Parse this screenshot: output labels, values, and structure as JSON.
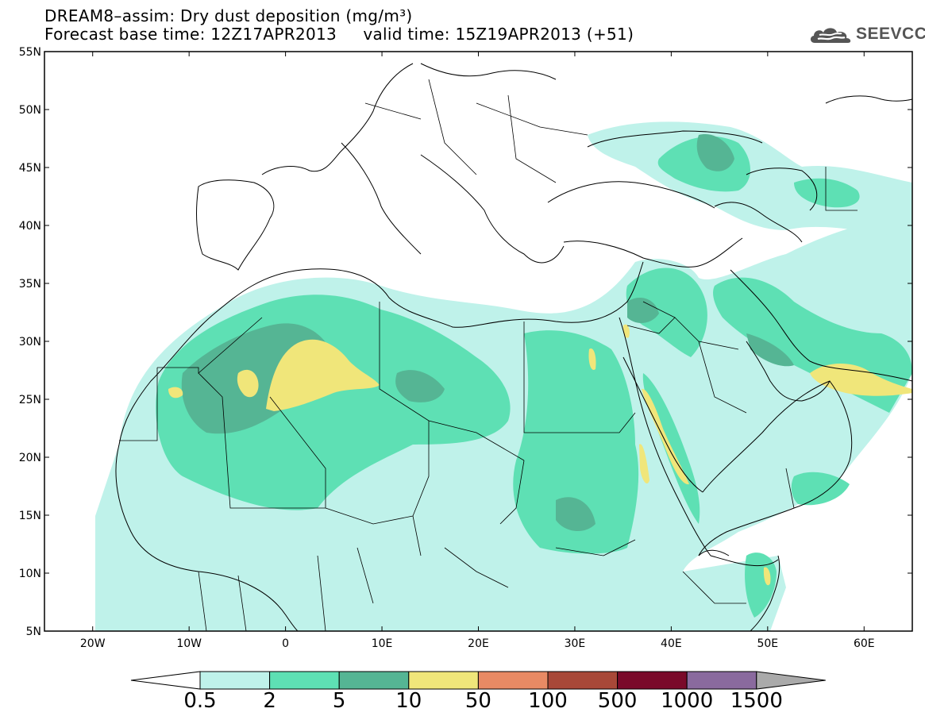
{
  "title": {
    "line1": "DREAM8–assim: Dry dust deposition (mg/m³)",
    "line2": "Forecast base time: 12Z17APR2013     valid time: 15Z19APR2013 (+51)"
  },
  "logo": {
    "text": "SEEVCCC",
    "icon": "cloud-icon"
  },
  "map": {
    "lon_range": [
      -25,
      65
    ],
    "lat_range": [
      5,
      55
    ],
    "lat_ticks": [
      {
        "value": 55,
        "label": "55N"
      },
      {
        "value": 50,
        "label": "50N"
      },
      {
        "value": 45,
        "label": "45N"
      },
      {
        "value": 40,
        "label": "40N"
      },
      {
        "value": 35,
        "label": "35N"
      },
      {
        "value": 30,
        "label": "30N"
      },
      {
        "value": 25,
        "label": "25N"
      },
      {
        "value": 20,
        "label": "20N"
      },
      {
        "value": 15,
        "label": "15N"
      },
      {
        "value": 10,
        "label": "10N"
      },
      {
        "value": 5,
        "label": "5N"
      }
    ],
    "lon_ticks": [
      {
        "value": -20,
        "label": "20W"
      },
      {
        "value": -10,
        "label": "10W"
      },
      {
        "value": 0,
        "label": "0"
      },
      {
        "value": 10,
        "label": "10E"
      },
      {
        "value": 20,
        "label": "20E"
      },
      {
        "value": 30,
        "label": "30E"
      },
      {
        "value": 40,
        "label": "40E"
      },
      {
        "value": 50,
        "label": "50E"
      },
      {
        "value": 60,
        "label": "60E"
      }
    ]
  },
  "colorbar": {
    "labels": [
      "0.5",
      "2",
      "5",
      "10",
      "50",
      "100",
      "500",
      "1000",
      "1500"
    ],
    "colors": [
      "#ffffff",
      "#bff2ea",
      "#5ee0b4",
      "#55b594",
      "#f0e67a",
      "#e88a64",
      "#a84838",
      "#7a0a2a",
      "#8a6a9e",
      "#aaaaaa"
    ]
  }
}
